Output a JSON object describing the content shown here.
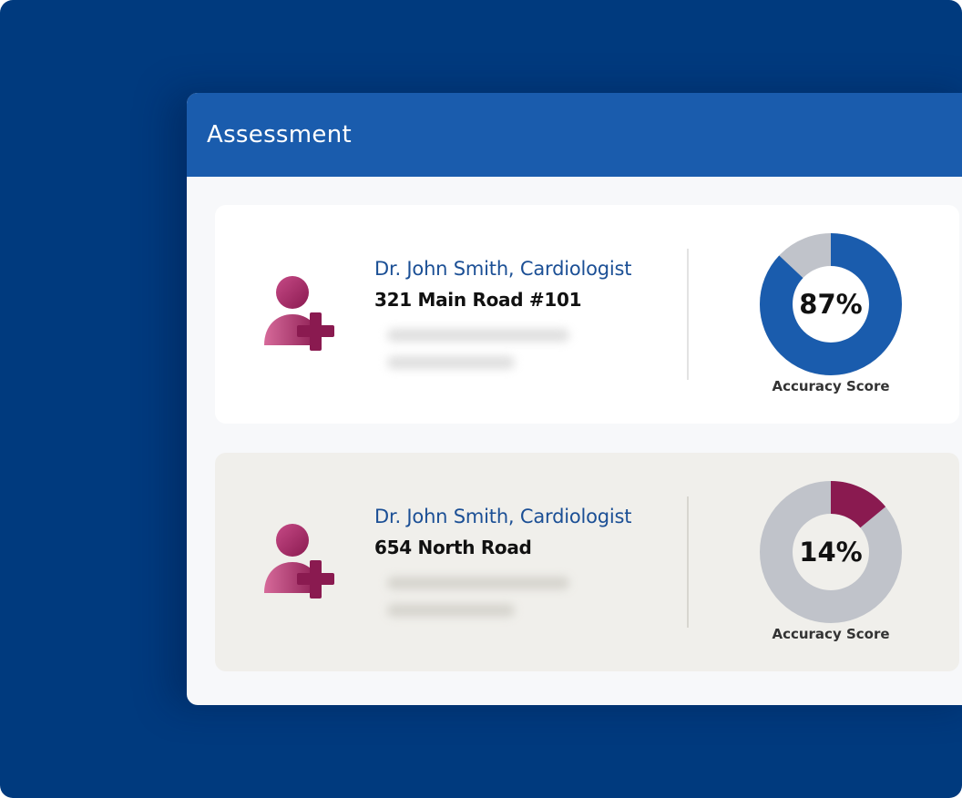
{
  "colors": {
    "background": "#003a7e",
    "header": "#1a5cad",
    "accent_blue": "#1a5cad",
    "accent_magenta": "#8a1a50",
    "track_gray": "#c0c3ca"
  },
  "header": {
    "title": "Assessment"
  },
  "cards": [
    {
      "name": "Dr. John Smith, Cardiologist",
      "address": "321 Main Road #101",
      "icon": "add-doctor-icon",
      "score": {
        "value": 87,
        "display": "87%",
        "label": "Accuracy Score",
        "color": "#1a5cad",
        "track": "#c0c3ca"
      },
      "background": "#ffffff"
    },
    {
      "name": "Dr. John Smith, Cardiologist",
      "address": "654 North Road",
      "icon": "add-doctor-icon",
      "score": {
        "value": 14,
        "display": "14%",
        "label": "Accuracy Score",
        "color": "#8a1a50",
        "track": "#c0c3ca"
      },
      "background": "#f0efeb"
    }
  ]
}
